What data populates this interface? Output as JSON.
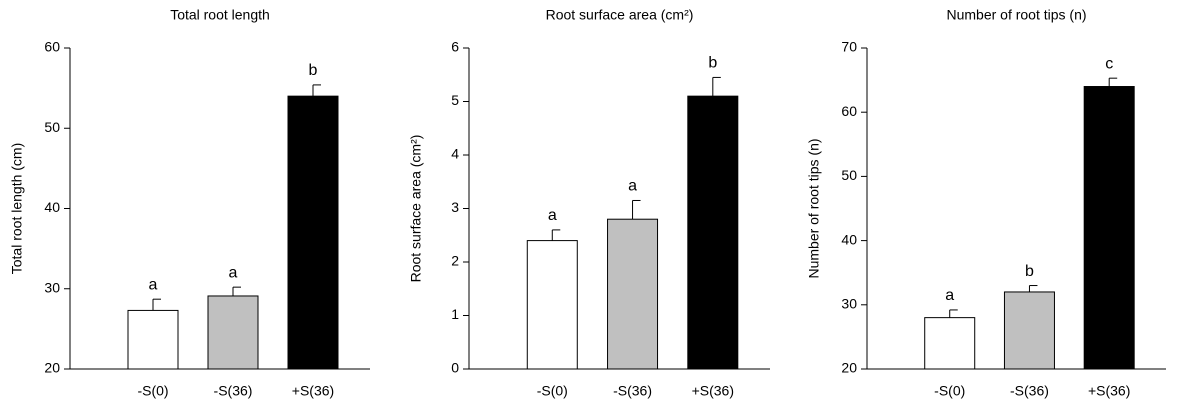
{
  "chart_data": [
    {
      "type": "bar",
      "title": "Total root length",
      "y_label": "Total root length (cm)",
      "categories": [
        "-S(0)",
        "-S(36)",
        "+S(36)"
      ],
      "values": [
        27.3,
        29.1,
        54
      ],
      "errors": [
        1.4,
        1.1,
        1.4
      ],
      "annotations": [
        "a",
        "a",
        "b"
      ],
      "colors": [
        "#ffffff",
        "#c0c0c0",
        "#000000"
      ],
      "ylim": [
        20,
        60
      ],
      "yticks": [
        20,
        30,
        40,
        50,
        60
      ]
    },
    {
      "type": "bar",
      "title": "Root surface area (cm²)",
      "y_label": "Root surface area (cm²)",
      "categories": [
        "-S(0)",
        "-S(36)",
        "+S(36)"
      ],
      "values": [
        2.4,
        2.8,
        5.1
      ],
      "errors": [
        0.2,
        0.35,
        0.35
      ],
      "annotations": [
        "a",
        "a",
        "b"
      ],
      "colors": [
        "#ffffff",
        "#c0c0c0",
        "#000000"
      ],
      "ylim": [
        0,
        6
      ],
      "yticks": [
        0,
        1,
        2,
        3,
        4,
        5,
        6
      ]
    },
    {
      "type": "bar",
      "title": "Number of root tips (n)",
      "y_label": "Number of root tips (n)",
      "categories": [
        "-S(0)",
        "-S(36)",
        "+S(36)"
      ],
      "values": [
        28,
        32,
        64
      ],
      "errors": [
        1.2,
        1.0,
        1.3
      ],
      "annotations": [
        "a",
        "b",
        "c"
      ],
      "colors": [
        "#ffffff",
        "#c0c0c0",
        "#000000"
      ],
      "ylim": [
        20,
        70
      ],
      "yticks": [
        20,
        30,
        40,
        50,
        60,
        70
      ]
    }
  ]
}
